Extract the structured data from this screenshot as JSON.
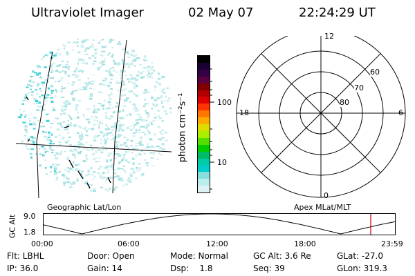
{
  "header": {
    "instrument": "Ultraviolet Imager",
    "date": "02 May 07",
    "time": "22:24:29 UT"
  },
  "colorbar": {
    "unit": "photon cm⁻²s⁻¹",
    "scale": "log",
    "tick_labels": [
      "100",
      "10"
    ],
    "colors": [
      "#000000",
      "#1a0033",
      "#330044",
      "#5a0040",
      "#800000",
      "#b00000",
      "#dd0000",
      "#ff3300",
      "#ff7700",
      "#ffaa00",
      "#dddd00",
      "#aaee00",
      "#55dd00",
      "#00cc00",
      "#00bb66",
      "#00ccaa",
      "#00cccc",
      "#88dddd",
      "#bbeeee",
      "#ddf2f2"
    ]
  },
  "polar": {
    "mlt_labels": [
      "12",
      "18",
      "6",
      "0"
    ],
    "mlat_labels": [
      "60",
      "70",
      "80"
    ]
  },
  "map_labels": {
    "left": "Geographic Lat/Lon",
    "right": "Apex MLat/MLT"
  },
  "orbit_plot": {
    "ylabel": "GC Alt",
    "yticks": [
      "9.0",
      "1.8"
    ],
    "xticks": [
      "00:00",
      "06:00",
      "12:00",
      "18:00",
      "23:59"
    ],
    "marker_color": "#cc0000"
  },
  "params": {
    "flt": "Flt: LBHL",
    "door": "Door: Open",
    "mode": "Mode: Normal",
    "gc_alt": "GC Alt: 3.6 Re",
    "glat": "GLat: -27.0",
    "ip": "IP: 36.0",
    "gain": "Gain: 14",
    "dsp": "Dsp:    1.8",
    "seq": "Seq: 39",
    "glon": "GLon: 319.3"
  }
}
